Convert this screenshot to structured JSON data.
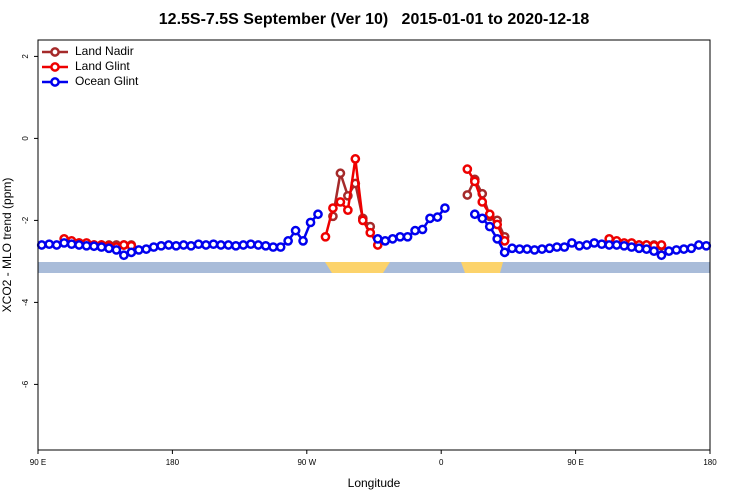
{
  "chart_data": {
    "type": "line",
    "title": "12.5S-7.5S September (Ver 10)   2015-01-01 to 2020-12-18",
    "x_label": "Longitude",
    "y_label": "XCO2 - MLO trend (ppm)",
    "xlim": [
      90,
      540
    ],
    "ylim": [
      -7.6,
      2.4
    ],
    "xticks": [
      {
        "value": 90,
        "label": "90 E"
      },
      180,
      {
        "value": 270,
        "label": "90 W"
      },
      {
        "value": 360,
        "label": "0"
      },
      {
        "value": 450,
        "label": "90 E"
      },
      {
        "value": 540,
        "label": "180"
      }
    ],
    "yticks": [
      -6,
      -4,
      -2,
      0,
      2
    ],
    "legend": "top-left",
    "x": [
      92.5,
      97.5,
      102.5,
      107.5,
      112.5,
      117.5,
      122.5,
      127.5,
      132.5,
      137.5,
      142.5,
      147.5,
      152.5,
      157.5,
      162.5,
      167.5,
      172.5,
      177.5,
      182.5,
      187.5,
      192.5,
      197.5,
      202.5,
      207.5,
      212.5,
      217.5,
      222.5,
      227.5,
      232.5,
      237.5,
      242.5,
      247.5,
      252.5,
      257.5,
      262.5,
      267.5,
      272.5,
      277.5,
      282.5,
      287.5,
      292.5,
      297.5,
      302.5,
      307.5,
      312.5,
      317.5,
      322.5,
      327.5,
      332.5,
      337.5,
      342.5,
      347.5,
      352.5,
      357.5,
      362.5,
      367.5,
      372.5,
      377.5,
      382.5,
      387.5,
      392.5,
      397.5,
      402.5,
      407.5,
      412.5,
      417.5,
      422.5,
      427.5,
      432.5,
      437.5,
      442.5,
      447.5,
      452.5,
      457.5,
      462.5,
      467.5,
      472.5,
      477.5,
      482.5,
      487.5,
      492.5,
      497.5,
      502.5,
      507.5,
      512.5,
      517.5,
      522.5,
      527.5,
      532.5,
      537.5
    ],
    "series": [
      {
        "name": "Land Nadir",
        "color": "#a52a2a",
        "values": [
          null,
          null,
          null,
          null,
          -2.55,
          -2.55,
          -2.58,
          -2.6,
          -2.6,
          -2.6,
          -2.6,
          -2.6,
          -2.6,
          null,
          null,
          null,
          null,
          null,
          null,
          null,
          null,
          null,
          null,
          null,
          null,
          null,
          null,
          null,
          null,
          null,
          null,
          null,
          null,
          null,
          null,
          null,
          null,
          null,
          null,
          -1.9,
          -0.85,
          -1.4,
          -1.1,
          -1.95,
          -2.15,
          null,
          null,
          null,
          null,
          null,
          null,
          null,
          null,
          null,
          null,
          null,
          null,
          -1.38,
          -1.0,
          -1.35,
          -1.9,
          -2.0,
          -2.4,
          null,
          null,
          null,
          null,
          null,
          null,
          null,
          null,
          null,
          null,
          null,
          null,
          null,
          -2.55,
          -2.55,
          -2.58,
          -2.6,
          -2.6,
          -2.6,
          -2.6,
          -2.62,
          null,
          null,
          null,
          null,
          null,
          null
        ]
      },
      {
        "name": "Land Glint",
        "color": "#ee0000",
        "values": [
          null,
          null,
          null,
          -2.45,
          -2.5,
          -2.55,
          -2.55,
          -2.6,
          -2.6,
          -2.62,
          -2.65,
          -2.6,
          -2.62,
          null,
          null,
          null,
          null,
          null,
          null,
          null,
          null,
          null,
          null,
          null,
          null,
          null,
          null,
          null,
          null,
          null,
          null,
          null,
          null,
          null,
          null,
          null,
          null,
          null,
          -2.4,
          -1.7,
          -1.55,
          -1.75,
          -0.5,
          -2.0,
          -2.3,
          -2.6,
          null,
          null,
          null,
          null,
          null,
          null,
          null,
          null,
          null,
          null,
          null,
          -0.75,
          -1.05,
          -1.55,
          -1.85,
          -2.1,
          -2.5,
          null,
          null,
          null,
          null,
          null,
          null,
          null,
          null,
          null,
          null,
          null,
          null,
          null,
          -2.45,
          -2.5,
          -2.55,
          -2.55,
          -2.6,
          -2.6,
          -2.62,
          -2.6,
          null,
          null,
          null,
          null,
          null,
          null
        ]
      },
      {
        "name": "Ocean Glint",
        "color": "#0000ee",
        "values": [
          -2.6,
          -2.58,
          -2.6,
          -2.55,
          -2.58,
          -2.6,
          -2.62,
          -2.63,
          -2.65,
          -2.68,
          -2.72,
          -2.85,
          -2.78,
          -2.72,
          -2.7,
          -2.65,
          -2.62,
          -2.6,
          -2.62,
          -2.6,
          -2.62,
          -2.58,
          -2.6,
          -2.58,
          -2.6,
          -2.6,
          -2.62,
          -2.6,
          -2.58,
          -2.6,
          -2.62,
          -2.65,
          -2.65,
          -2.5,
          -2.25,
          -2.5,
          -2.05,
          -1.85,
          null,
          null,
          null,
          null,
          null,
          null,
          null,
          -2.45,
          -2.5,
          -2.45,
          -2.4,
          -2.4,
          -2.25,
          -2.22,
          -1.95,
          -1.92,
          -1.7,
          null,
          null,
          null,
          -1.85,
          -1.95,
          -2.15,
          -2.45,
          -2.78,
          -2.68,
          -2.7,
          -2.7,
          -2.72,
          -2.7,
          -2.68,
          -2.65,
          -2.65,
          -2.55,
          -2.62,
          -2.6,
          -2.55,
          -2.58,
          -2.6,
          -2.6,
          -2.62,
          -2.65,
          -2.68,
          -2.7,
          -2.75,
          -2.85,
          -2.75,
          -2.72,
          -2.7,
          -2.68,
          -2.6,
          -2.62
        ]
      }
    ]
  }
}
